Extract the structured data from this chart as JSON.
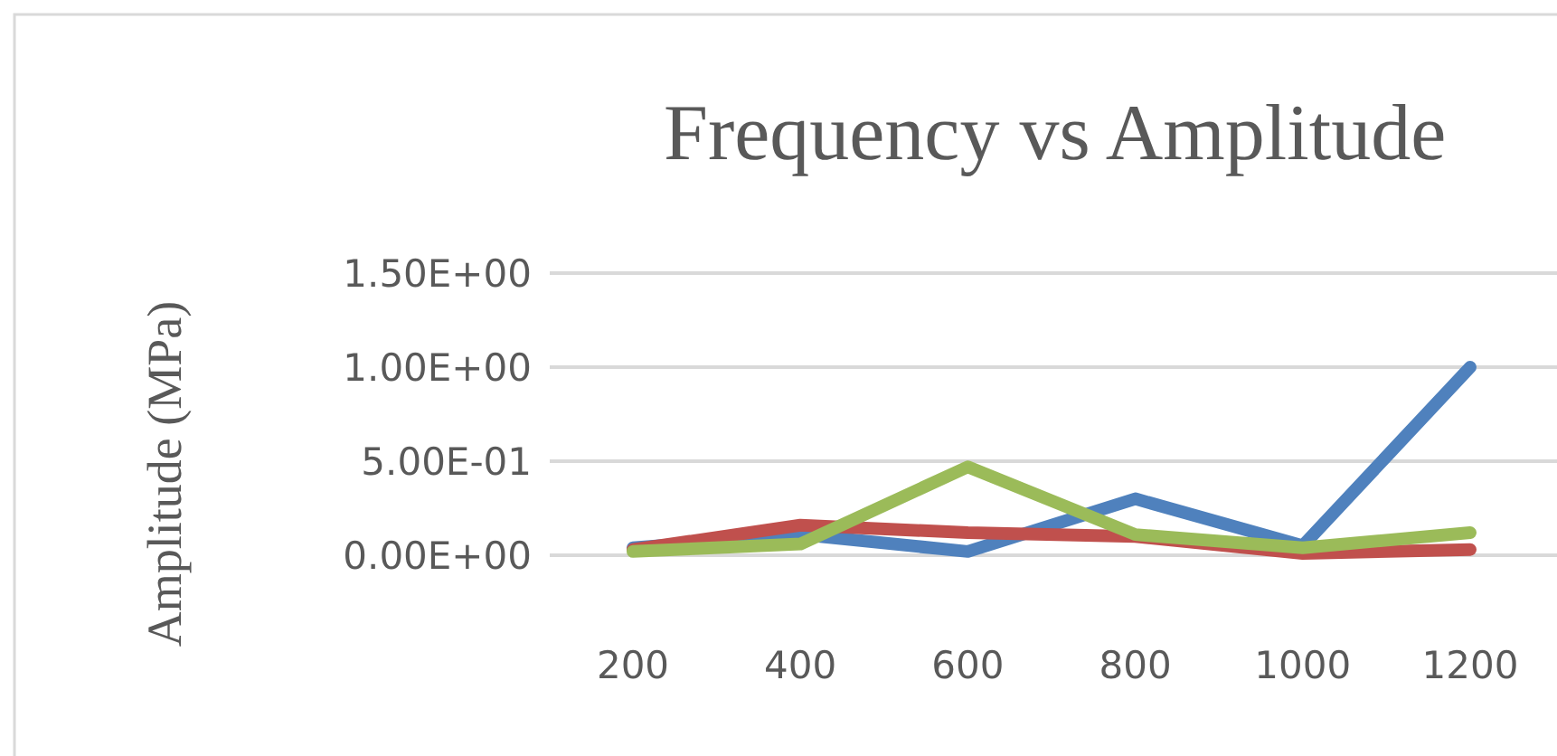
{
  "chart_data": {
    "type": "line",
    "title": "Frequency vs Amplitude",
    "ylabel": "Amplitude (MPa)",
    "categories": [
      "200",
      "400",
      "600",
      "800",
      "1000",
      "1200"
    ],
    "series": [
      {
        "color": "#4f81bd",
        "values": [
          0.04,
          0.11,
          0.02,
          0.3,
          0.05,
          1.0
        ]
      },
      {
        "color": "#c0504d",
        "values": [
          0.03,
          0.16,
          0.12,
          0.1,
          0.01,
          0.03
        ]
      },
      {
        "color": "#9bbb59",
        "values": [
          0.02,
          0.06,
          0.47,
          0.11,
          0.04,
          0.12
        ]
      }
    ],
    "ylim": [
      0,
      1.5
    ],
    "yticks": [
      {
        "value": 0,
        "label": "0.00E+00"
      },
      {
        "value": 0.5,
        "label": "5.00E-01"
      },
      {
        "value": 1,
        "label": "1.00E+00"
      },
      {
        "value": 1.5,
        "label": "1.50E+00"
      }
    ],
    "grid": "y",
    "marker": "none",
    "line_style": "solid"
  }
}
